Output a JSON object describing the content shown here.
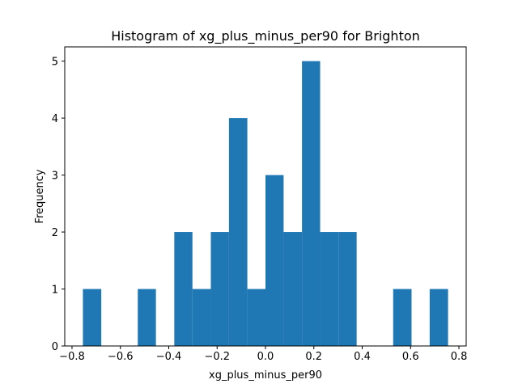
{
  "chart_data": {
    "type": "bar",
    "title": "Histogram of xg_plus_minus_per90 for Brighton",
    "xlabel": "xg_plus_minus_per90",
    "ylabel": "Frequency",
    "bar_color": "#1f77b4",
    "bins": [
      {
        "x0": -0.755,
        "x1": -0.679,
        "count": 1
      },
      {
        "x0": -0.679,
        "x1": -0.604,
        "count": 0
      },
      {
        "x0": -0.604,
        "x1": -0.528,
        "count": 0
      },
      {
        "x0": -0.528,
        "x1": -0.453,
        "count": 1
      },
      {
        "x0": -0.453,
        "x1": -0.377,
        "count": 0
      },
      {
        "x0": -0.377,
        "x1": -0.302,
        "count": 2
      },
      {
        "x0": -0.302,
        "x1": -0.226,
        "count": 1
      },
      {
        "x0": -0.226,
        "x1": -0.151,
        "count": 2
      },
      {
        "x0": -0.151,
        "x1": -0.075,
        "count": 4
      },
      {
        "x0": -0.075,
        "x1": 0.0,
        "count": 1
      },
      {
        "x0": 0.0,
        "x1": 0.075,
        "count": 3
      },
      {
        "x0": 0.075,
        "x1": 0.151,
        "count": 2
      },
      {
        "x0": 0.151,
        "x1": 0.226,
        "count": 5
      },
      {
        "x0": 0.226,
        "x1": 0.302,
        "count": 2
      },
      {
        "x0": 0.302,
        "x1": 0.377,
        "count": 2
      },
      {
        "x0": 0.377,
        "x1": 0.453,
        "count": 0
      },
      {
        "x0": 0.453,
        "x1": 0.528,
        "count": 0
      },
      {
        "x0": 0.528,
        "x1": 0.604,
        "count": 1
      },
      {
        "x0": 0.604,
        "x1": 0.679,
        "count": 0
      },
      {
        "x0": 0.679,
        "x1": 0.755,
        "count": 1
      }
    ],
    "xlim": [
      -0.83,
      0.83
    ],
    "ylim": [
      0,
      5.25
    ],
    "x_ticks": [
      -0.8,
      -0.6,
      -0.4,
      -0.2,
      0.0,
      0.2,
      0.4,
      0.6,
      0.8
    ],
    "x_tick_labels": [
      "−0.8",
      "−0.6",
      "−0.4",
      "−0.2",
      "0.0",
      "0.2",
      "0.4",
      "0.6",
      "0.8"
    ],
    "y_ticks": [
      0,
      1,
      2,
      3,
      4,
      5
    ],
    "y_tick_labels": [
      "0",
      "1",
      "2",
      "3",
      "4",
      "5"
    ],
    "grid": false,
    "legend": "none"
  }
}
